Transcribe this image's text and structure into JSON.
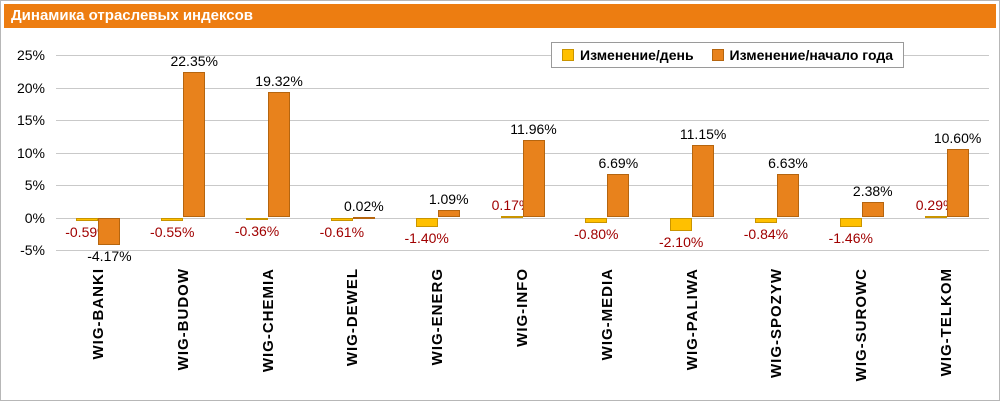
{
  "header": {
    "title": "Динамика отраслевых индексов"
  },
  "colors": {
    "header_bg": "#ED7D11",
    "grid": "#C9C9C9",
    "frame": "#B7B7B7"
  },
  "chart_data": {
    "type": "bar",
    "title": "Динамика отраслевых индексов",
    "categories": [
      "WIG-BANKI",
      "WIG-BUDOW",
      "WIG-CHEMIA",
      "WIG-DEWEL",
      "WIG-ENERG",
      "WIG-INFO",
      "WIG-MEDIA",
      "WIG-PALIWA",
      "WIG-SPOZYW",
      "WIG-SUROWC",
      "WIG-TELKOM"
    ],
    "series": [
      {
        "name": "Изменение/день",
        "color": "#FFC000",
        "border_color": "#C99400",
        "label_color": "#A00000",
        "values": [
          -0.59,
          -0.55,
          -0.36,
          -0.61,
          -1.4,
          0.17,
          -0.8,
          -2.1,
          -0.84,
          -1.46,
          0.29
        ]
      },
      {
        "name": "Изменение/начало года",
        "color": "#E8821C",
        "border_color": "#B5650F",
        "label_color": "#000000",
        "values": [
          -4.17,
          22.35,
          19.32,
          0.02,
          1.09,
          11.96,
          6.69,
          11.15,
          6.63,
          2.38,
          10.6
        ]
      }
    ],
    "ylim": [
      -5,
      25
    ],
    "yticks": [
      25,
      20,
      15,
      10,
      5,
      0,
      -5
    ],
    "ytick_suffix": "%",
    "grid": true,
    "legend_position": "top-right",
    "value_label_format": "0.00%"
  }
}
